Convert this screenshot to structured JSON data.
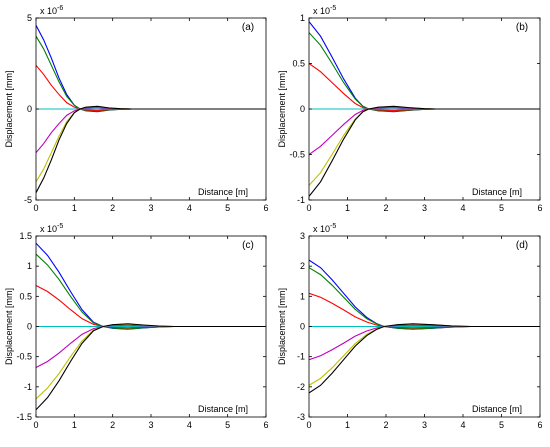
{
  "chart_data": [
    {
      "type": "line",
      "panel_label": "(a)",
      "xlabel": "Distance [m]",
      "ylabel": "Displacement [mm]",
      "exponent": "x 10",
      "exponent_power": "-6",
      "xlim": [
        0,
        6
      ],
      "ylim": [
        -5,
        5
      ],
      "xticks": [
        "0",
        "1",
        "2",
        "3",
        "4",
        "5",
        "6"
      ],
      "yticks": [
        "5",
        "0",
        "-5"
      ],
      "ytick_values": [
        5,
        0,
        -5
      ],
      "grid": false,
      "legend": "none",
      "series": [
        {
          "color": "#0000ff",
          "x": [
            0,
            0.2,
            0.4,
            0.6,
            0.8,
            1.0,
            1.15,
            1.3,
            1.6,
            1.9,
            2.2,
            2.5,
            6
          ],
          "y": [
            4.6,
            3.8,
            2.8,
            1.7,
            0.8,
            0.2,
            0.0,
            -0.1,
            -0.15,
            -0.06,
            -0.02,
            0.0,
            0.0
          ]
        },
        {
          "color": "#008000",
          "x": [
            0,
            0.2,
            0.4,
            0.6,
            0.8,
            1.0,
            1.15,
            1.3,
            1.6,
            1.9,
            2.2,
            2.5,
            6
          ],
          "y": [
            4.0,
            3.3,
            2.4,
            1.5,
            0.7,
            0.2,
            0.0,
            -0.09,
            -0.13,
            -0.05,
            -0.02,
            0.0,
            0.0
          ]
        },
        {
          "color": "#ff0000",
          "x": [
            0,
            0.2,
            0.4,
            0.6,
            0.8,
            1.0,
            1.15,
            1.3,
            1.6,
            1.9,
            2.2,
            2.5,
            6
          ],
          "y": [
            2.4,
            1.9,
            1.3,
            0.8,
            0.35,
            0.1,
            0.0,
            -0.05,
            -0.08,
            -0.03,
            -0.01,
            0.0,
            0.0
          ]
        },
        {
          "color": "#00bfbf",
          "x": [
            0,
            6
          ],
          "y": [
            0.0,
            0.0
          ]
        },
        {
          "color": "#bf00bf",
          "x": [
            0,
            0.2,
            0.4,
            0.6,
            0.8,
            1.0,
            1.15,
            1.3,
            1.6,
            1.9,
            2.2,
            2.5,
            6
          ],
          "y": [
            -2.4,
            -1.9,
            -1.3,
            -0.8,
            -0.35,
            -0.1,
            0.0,
            0.05,
            0.08,
            0.03,
            0.01,
            0.0,
            0.0
          ]
        },
        {
          "color": "#bfbf00",
          "x": [
            0,
            0.2,
            0.4,
            0.6,
            0.8,
            1.0,
            1.15,
            1.3,
            1.6,
            1.9,
            2.2,
            2.5,
            6
          ],
          "y": [
            -4.0,
            -3.3,
            -2.4,
            -1.5,
            -0.7,
            -0.2,
            0.0,
            0.09,
            0.13,
            0.05,
            0.02,
            0.0,
            0.0
          ]
        },
        {
          "color": "#000000",
          "x": [
            0,
            0.2,
            0.4,
            0.6,
            0.8,
            1.0,
            1.15,
            1.3,
            1.6,
            1.9,
            2.2,
            2.5,
            6
          ],
          "y": [
            -4.6,
            -3.8,
            -2.8,
            -1.7,
            -0.8,
            -0.2,
            0.0,
            0.1,
            0.15,
            0.06,
            0.02,
            0.0,
            0.0
          ]
        }
      ]
    },
    {
      "type": "line",
      "panel_label": "(b)",
      "xlabel": "Distance [m]",
      "ylabel": "Displacement [mm]",
      "exponent": "x 10",
      "exponent_power": "-5",
      "xlim": [
        0,
        6
      ],
      "ylim": [
        -1,
        1
      ],
      "xticks": [
        "0",
        "1",
        "2",
        "3",
        "4",
        "5",
        "6"
      ],
      "yticks": [
        "1",
        "0.5",
        "0",
        "-0.5",
        "-1"
      ],
      "ytick_values": [
        1,
        0.5,
        0,
        -0.5,
        -1
      ],
      "grid": false,
      "legend": "none",
      "series": [
        {
          "color": "#0000ff",
          "x": [
            0,
            0.3,
            0.6,
            0.9,
            1.2,
            1.4,
            1.55,
            1.8,
            2.2,
            2.6,
            3.0,
            3.3,
            6
          ],
          "y": [
            0.96,
            0.8,
            0.57,
            0.33,
            0.12,
            0.03,
            0.0,
            -0.02,
            -0.03,
            -0.015,
            -0.004,
            0.0,
            0.0
          ]
        },
        {
          "color": "#008000",
          "x": [
            0,
            0.3,
            0.6,
            0.9,
            1.2,
            1.4,
            1.55,
            1.8,
            2.2,
            2.6,
            3.0,
            3.3,
            6
          ],
          "y": [
            0.84,
            0.7,
            0.5,
            0.29,
            0.11,
            0.03,
            0.0,
            -0.018,
            -0.027,
            -0.013,
            -0.004,
            0.0,
            0.0
          ]
        },
        {
          "color": "#ff0000",
          "x": [
            0,
            0.3,
            0.6,
            0.9,
            1.2,
            1.4,
            1.55,
            1.8,
            2.2,
            2.6,
            3.0,
            3.3,
            6
          ],
          "y": [
            0.5,
            0.41,
            0.29,
            0.17,
            0.06,
            0.015,
            0.0,
            -0.01,
            -0.016,
            -0.008,
            -0.002,
            0.0,
            0.0
          ]
        },
        {
          "color": "#00bfbf",
          "x": [
            0,
            6
          ],
          "y": [
            0.0,
            0.0
          ]
        },
        {
          "color": "#bf00bf",
          "x": [
            0,
            0.3,
            0.6,
            0.9,
            1.2,
            1.4,
            1.55,
            1.8,
            2.2,
            2.6,
            3.0,
            3.3,
            6
          ],
          "y": [
            -0.5,
            -0.41,
            -0.29,
            -0.17,
            -0.06,
            -0.015,
            0.0,
            0.01,
            0.016,
            0.008,
            0.002,
            0.0,
            0.0
          ]
        },
        {
          "color": "#bfbf00",
          "x": [
            0,
            0.3,
            0.6,
            0.9,
            1.2,
            1.4,
            1.55,
            1.8,
            2.2,
            2.6,
            3.0,
            3.3,
            6
          ],
          "y": [
            -0.84,
            -0.7,
            -0.5,
            -0.29,
            -0.11,
            -0.03,
            0.0,
            0.018,
            0.027,
            0.013,
            0.004,
            0.0,
            0.0
          ]
        },
        {
          "color": "#000000",
          "x": [
            0,
            0.3,
            0.6,
            0.9,
            1.2,
            1.4,
            1.55,
            1.8,
            2.2,
            2.6,
            3.0,
            3.3,
            6
          ],
          "y": [
            -0.96,
            -0.8,
            -0.57,
            -0.33,
            -0.12,
            -0.03,
            0.0,
            0.02,
            0.03,
            0.015,
            0.004,
            0.0,
            0.0
          ]
        }
      ]
    },
    {
      "type": "line",
      "panel_label": "(c)",
      "xlabel": "Distance [m]",
      "ylabel": "Displacement [mm]",
      "exponent": "x 10",
      "exponent_power": "-5",
      "xlim": [
        0,
        6
      ],
      "ylim": [
        -1.5,
        1.5
      ],
      "xticks": [
        "0",
        "1",
        "2",
        "3",
        "4",
        "5",
        "6"
      ],
      "yticks": [
        "1.5",
        "1",
        "0.5",
        "0",
        "-0.5",
        "-1",
        "-1.5"
      ],
      "ytick_values": [
        1.5,
        1,
        0.5,
        0,
        -0.5,
        -1,
        -1.5
      ],
      "grid": false,
      "legend": "none",
      "series": [
        {
          "color": "#0000ff",
          "x": [
            0,
            0.3,
            0.6,
            0.9,
            1.2,
            1.5,
            1.75,
            2.0,
            2.4,
            2.8,
            3.2,
            3.6,
            6
          ],
          "y": [
            1.38,
            1.18,
            0.9,
            0.58,
            0.28,
            0.07,
            0.0,
            -0.03,
            -0.045,
            -0.025,
            -0.008,
            0.0,
            0.0
          ]
        },
        {
          "color": "#008000",
          "x": [
            0,
            0.3,
            0.6,
            0.9,
            1.2,
            1.5,
            1.75,
            2.0,
            2.4,
            2.8,
            3.2,
            3.6,
            6
          ],
          "y": [
            1.2,
            1.02,
            0.78,
            0.5,
            0.24,
            0.06,
            0.0,
            -0.026,
            -0.04,
            -0.022,
            -0.007,
            0.0,
            0.0
          ]
        },
        {
          "color": "#ff0000",
          "x": [
            0,
            0.3,
            0.6,
            0.9,
            1.2,
            1.5,
            1.75,
            2.0,
            2.4,
            2.8,
            3.2,
            3.6,
            6
          ],
          "y": [
            0.68,
            0.58,
            0.44,
            0.28,
            0.13,
            0.035,
            0.0,
            -0.015,
            -0.022,
            -0.012,
            -0.004,
            0.0,
            0.0
          ]
        },
        {
          "color": "#00bfbf",
          "x": [
            0,
            6
          ],
          "y": [
            0.0,
            0.0
          ]
        },
        {
          "color": "#bf00bf",
          "x": [
            0,
            0.3,
            0.6,
            0.9,
            1.2,
            1.5,
            1.75,
            2.0,
            2.4,
            2.8,
            3.2,
            3.6,
            6
          ],
          "y": [
            -0.68,
            -0.58,
            -0.44,
            -0.28,
            -0.13,
            -0.035,
            0.0,
            0.015,
            0.022,
            0.012,
            0.004,
            0.0,
            0.0
          ]
        },
        {
          "color": "#bfbf00",
          "x": [
            0,
            0.3,
            0.6,
            0.9,
            1.2,
            1.5,
            1.75,
            2.0,
            2.4,
            2.8,
            3.2,
            3.6,
            6
          ],
          "y": [
            -1.2,
            -1.02,
            -0.78,
            -0.5,
            -0.24,
            -0.06,
            0.0,
            0.026,
            0.04,
            0.022,
            0.007,
            0.0,
            0.0
          ]
        },
        {
          "color": "#000000",
          "x": [
            0,
            0.3,
            0.6,
            0.9,
            1.2,
            1.5,
            1.75,
            2.0,
            2.4,
            2.8,
            3.2,
            3.6,
            6
          ],
          "y": [
            -1.38,
            -1.18,
            -0.9,
            -0.58,
            -0.28,
            -0.07,
            0.0,
            0.03,
            0.045,
            0.025,
            0.008,
            0.0,
            0.0
          ]
        }
      ]
    },
    {
      "type": "line",
      "panel_label": "(d)",
      "xlabel": "Distance [m]",
      "ylabel": "Displacement [mm]",
      "exponent": "x 10",
      "exponent_power": "-5",
      "xlim": [
        0,
        6
      ],
      "ylim": [
        -3,
        3
      ],
      "xticks": [
        "0",
        "1",
        "2",
        "3",
        "4",
        "5",
        "6"
      ],
      "yticks": [
        "3",
        "2",
        "1",
        "0",
        "-1",
        "-2",
        "-3"
      ],
      "ytick_values": [
        3,
        2,
        1,
        0,
        -1,
        -2,
        -3
      ],
      "grid": false,
      "legend": "none",
      "series": [
        {
          "color": "#0000ff",
          "x": [
            0,
            0.3,
            0.6,
            0.9,
            1.2,
            1.5,
            1.75,
            1.95,
            2.3,
            2.7,
            3.2,
            3.7,
            4.2,
            6
          ],
          "y": [
            2.2,
            1.95,
            1.55,
            1.1,
            0.65,
            0.3,
            0.1,
            0.0,
            -0.06,
            -0.09,
            -0.06,
            -0.02,
            0.0,
            0.0
          ]
        },
        {
          "color": "#008000",
          "x": [
            0,
            0.3,
            0.6,
            0.9,
            1.2,
            1.5,
            1.75,
            1.95,
            2.3,
            2.7,
            3.2,
            3.7,
            4.2,
            6
          ],
          "y": [
            1.95,
            1.72,
            1.37,
            0.97,
            0.57,
            0.26,
            0.09,
            0.0,
            -0.055,
            -0.08,
            -0.055,
            -0.018,
            0.0,
            0.0
          ]
        },
        {
          "color": "#ff0000",
          "x": [
            0,
            0.3,
            0.6,
            0.9,
            1.2,
            1.5,
            1.75,
            1.95,
            2.3,
            2.7,
            3.2,
            3.7,
            4.2,
            6
          ],
          "y": [
            1.1,
            0.97,
            0.77,
            0.55,
            0.32,
            0.15,
            0.05,
            0.0,
            -0.03,
            -0.045,
            -0.03,
            -0.01,
            0.0,
            0.0
          ]
        },
        {
          "color": "#00bfbf",
          "x": [
            0,
            6
          ],
          "y": [
            0.0,
            0.0
          ]
        },
        {
          "color": "#bf00bf",
          "x": [
            0,
            0.3,
            0.6,
            0.9,
            1.2,
            1.5,
            1.75,
            1.95,
            2.3,
            2.7,
            3.2,
            3.7,
            4.2,
            6
          ],
          "y": [
            -1.1,
            -0.97,
            -0.77,
            -0.55,
            -0.32,
            -0.15,
            -0.05,
            0.0,
            0.03,
            0.045,
            0.03,
            0.01,
            0.0,
            0.0
          ]
        },
        {
          "color": "#bfbf00",
          "x": [
            0,
            0.3,
            0.6,
            0.9,
            1.2,
            1.5,
            1.75,
            1.95,
            2.3,
            2.7,
            3.2,
            3.7,
            4.2,
            6
          ],
          "y": [
            -1.95,
            -1.72,
            -1.37,
            -0.97,
            -0.57,
            -0.26,
            -0.09,
            0.0,
            0.055,
            0.08,
            0.055,
            0.018,
            0.0,
            0.0
          ]
        },
        {
          "color": "#000000",
          "x": [
            0,
            0.3,
            0.6,
            0.9,
            1.2,
            1.5,
            1.75,
            1.95,
            2.3,
            2.7,
            3.2,
            3.7,
            4.2,
            6
          ],
          "y": [
            -2.2,
            -1.95,
            -1.55,
            -1.1,
            -0.65,
            -0.3,
            -0.1,
            0.0,
            0.06,
            0.09,
            0.06,
            0.02,
            0.0,
            0.0
          ]
        }
      ]
    }
  ]
}
